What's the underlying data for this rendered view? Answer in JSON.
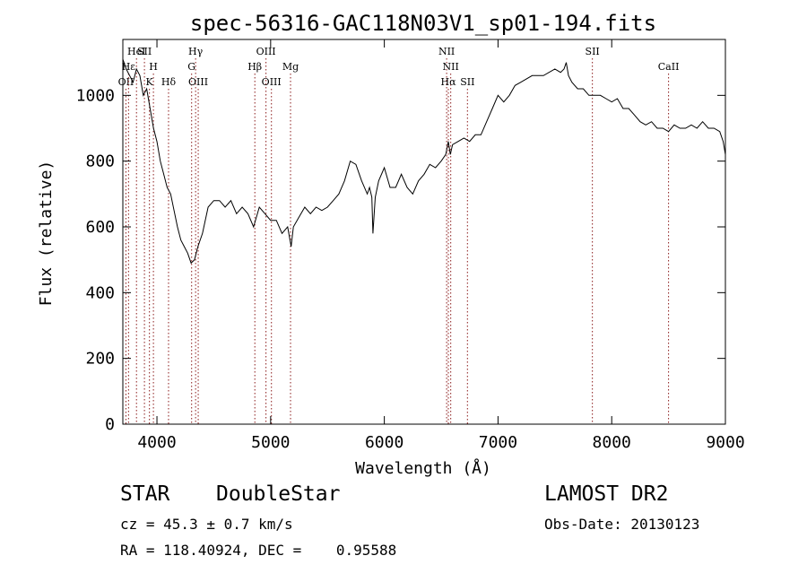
{
  "chart_data": {
    "type": "line",
    "title": "spec-56316-GAC118N03V1_sp01-194.fits",
    "xlabel": "Wavelength (Å)",
    "ylabel": "Flux (relative)",
    "xlim": [
      3700,
      9000
    ],
    "ylim": [
      0,
      1170
    ],
    "xticks": [
      4000,
      5000,
      6000,
      7000,
      8000,
      9000
    ],
    "yticks": [
      0,
      200,
      400,
      600,
      800,
      1000
    ],
    "grid": false,
    "line_color": "#000000",
    "marker_color": "#8b1a1a",
    "series": [
      {
        "x": [
          3700,
          3730,
          3760,
          3790,
          3820,
          3850,
          3880,
          3910,
          3940,
          3970,
          4000,
          4030,
          4060,
          4090,
          4120,
          4150,
          4180,
          4210,
          4240,
          4270,
          4300,
          4330,
          4360,
          4400,
          4450,
          4500,
          4550,
          4600,
          4650,
          4700,
          4750,
          4800,
          4850,
          4900,
          4950,
          5000,
          5050,
          5100,
          5150,
          5180,
          5200,
          5250,
          5300,
          5350,
          5400,
          5450,
          5500,
          5550,
          5600,
          5650,
          5700,
          5750,
          5800,
          5850,
          5870,
          5890,
          5900,
          5920,
          5950,
          6000,
          6050,
          6100,
          6150,
          6200,
          6250,
          6300,
          6350,
          6400,
          6450,
          6500,
          6540,
          6563,
          6580,
          6600,
          6650,
          6700,
          6750,
          6800,
          6850,
          6900,
          6950,
          7000,
          7050,
          7100,
          7150,
          7200,
          7300,
          7400,
          7500,
          7550,
          7580,
          7600,
          7620,
          7650,
          7700,
          7750,
          7800,
          7850,
          7900,
          7950,
          8000,
          8050,
          8100,
          8150,
          8200,
          8250,
          8300,
          8350,
          8400,
          8450,
          8500,
          8550,
          8600,
          8650,
          8700,
          8750,
          8800,
          8850,
          8900,
          8950,
          8980,
          9000
        ],
        "values": [
          1110,
          1080,
          1060,
          1040,
          1080,
          1060,
          1000,
          1020,
          960,
          900,
          860,
          800,
          760,
          720,
          700,
          650,
          600,
          560,
          540,
          520,
          490,
          500,
          540,
          580,
          660,
          680,
          680,
          660,
          680,
          640,
          660,
          640,
          600,
          660,
          640,
          620,
          620,
          580,
          600,
          540,
          600,
          630,
          660,
          640,
          660,
          650,
          660,
          680,
          700,
          740,
          800,
          790,
          740,
          700,
          720,
          690,
          580,
          690,
          740,
          780,
          720,
          720,
          760,
          720,
          700,
          740,
          760,
          790,
          780,
          800,
          820,
          860,
          820,
          850,
          860,
          870,
          860,
          880,
          880,
          920,
          960,
          1000,
          980,
          1000,
          1030,
          1040,
          1060,
          1060,
          1080,
          1070,
          1080,
          1100,
          1060,
          1040,
          1020,
          1020,
          1000,
          1000,
          1000,
          990,
          980,
          990,
          960,
          960,
          940,
          920,
          910,
          920,
          900,
          900,
          890,
          910,
          900,
          900,
          910,
          900,
          920,
          900,
          900,
          890,
          860,
          820
        ]
      }
    ],
    "line_markers": [
      {
        "label": "OII",
        "x": 3727,
        "row": 3
      },
      {
        "label": "Hε",
        "x": 3750,
        "row": 2
      },
      {
        "label": "HeI",
        "x": 3820,
        "row": 1
      },
      {
        "label": "SII",
        "x": 3890,
        "row": 1
      },
      {
        "label": "K",
        "x": 3934,
        "row": 3
      },
      {
        "label": "H",
        "x": 3969,
        "row": 2
      },
      {
        "label": "Hδ",
        "x": 4102,
        "row": 3
      },
      {
        "label": "Hγ",
        "x": 4340,
        "row": 1
      },
      {
        "label": "G",
        "x": 4305,
        "row": 2
      },
      {
        "label": "OIII",
        "x": 4363,
        "row": 3
      },
      {
        "label": "Hβ",
        "x": 4861,
        "row": 2
      },
      {
        "label": "OIII",
        "x": 4959,
        "row": 1
      },
      {
        "label": "OIII",
        "x": 5007,
        "row": 3
      },
      {
        "label": "Mg",
        "x": 5175,
        "row": 2
      },
      {
        "label": "NII",
        "x": 6548,
        "row": 1
      },
      {
        "label": "NII",
        "x": 6584,
        "row": 2
      },
      {
        "label": "Hα",
        "x": 6563,
        "row": 3
      },
      {
        "label": "SII",
        "x": 6731,
        "row": 3
      },
      {
        "label": "SII",
        "x": 7830,
        "row": 1
      },
      {
        "label": "CaII",
        "x": 8500,
        "row": 2
      }
    ]
  },
  "info": {
    "object_class": "STAR",
    "subclass": "DoubleStar",
    "survey": "LAMOST DR2",
    "cz": "cz = 45.3 ± 0.7 km/s",
    "obs_date": "Obs-Date: 20130123",
    "coords": "RA = 118.40924, DEC =    0.95588"
  }
}
